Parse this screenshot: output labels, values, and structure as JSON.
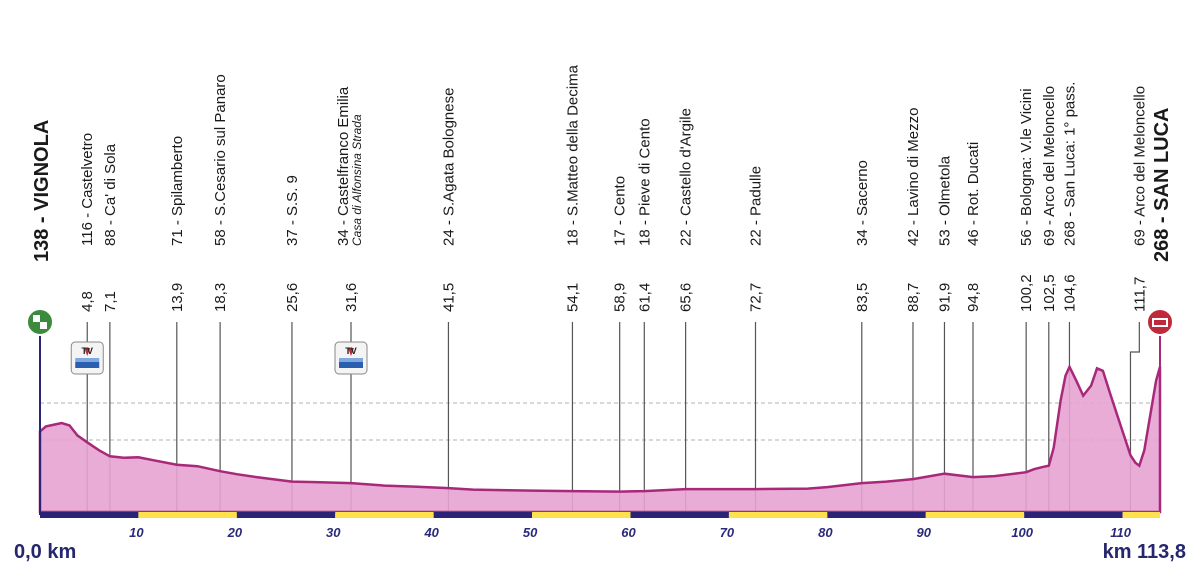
{
  "start": {
    "altitude": "138",
    "name": "VIGNOLA",
    "km_label": "0,0 km"
  },
  "finish": {
    "altitude": "268",
    "name": "SAN LUCA",
    "km_label": "km 113,8"
  },
  "colors": {
    "fill": "#e6a3d2",
    "line": "#a8287a",
    "navy": "#2a2376",
    "yellow": "#ffe04d",
    "pole": "#555555"
  },
  "chart_data": {
    "type": "area",
    "x_unit": "km",
    "xlim": [
      0,
      113.8
    ],
    "x_ticks": [
      10,
      20,
      30,
      40,
      50,
      60,
      70,
      80,
      90,
      100,
      110
    ],
    "profile": {
      "x": [
        0,
        0.6,
        1.5,
        2.2,
        3.0,
        3.8,
        4.8,
        6.0,
        7.1,
        8.5,
        10.0,
        11.5,
        13.9,
        16.0,
        18.3,
        20.0,
        22.0,
        25.6,
        28.0,
        31.6,
        35.0,
        38.0,
        41.5,
        44.0,
        50.0,
        54.1,
        58.9,
        61.4,
        65.6,
        72.7,
        78.0,
        80.0,
        83.5,
        86.0,
        88.7,
        91.9,
        94.8,
        97.0,
        100.2,
        101.0,
        101.8,
        102.5,
        103.0,
        103.7,
        104.2,
        104.6,
        105.3,
        106.0,
        106.8,
        107.4,
        108.0,
        108.8,
        109.8,
        110.8,
        111.3,
        111.7,
        112.2,
        112.8,
        113.4,
        113.8
      ],
      "y": [
        138,
        148,
        152,
        155,
        150,
        130,
        116,
        100,
        88,
        85,
        86,
        80,
        71,
        68,
        58,
        52,
        46,
        37,
        36,
        34,
        29,
        27,
        24,
        21,
        19,
        18,
        17,
        18,
        22,
        22,
        23,
        26,
        34,
        37,
        42,
        53,
        46,
        48,
        56,
        62,
        66,
        69,
        105,
        200,
        250,
        268,
        240,
        210,
        230,
        265,
        260,
        210,
        150,
        90,
        75,
        69,
        100,
        170,
        240,
        268
      ]
    },
    "waypoints": [
      {
        "km": "4,8",
        "x": 4.8,
        "label": "116 - Castelvetro"
      },
      {
        "km": "7,1",
        "x": 7.1,
        "label": "88 - Ca' di Sola"
      },
      {
        "km": "13,9",
        "x": 13.9,
        "label": "71 - Spilamberto"
      },
      {
        "km": "18,3",
        "x": 18.3,
        "label": "58 - S.Cesario sul Panaro"
      },
      {
        "km": "25,6",
        "x": 25.6,
        "label": "37 - S.S. 9"
      },
      {
        "km": "31,6",
        "x": 31.6,
        "label": "34 - Castelfranco Emilia",
        "sub": "Casa di Alfonsina Strada"
      },
      {
        "km": "41,5",
        "x": 41.5,
        "label": "24 - S.Agata Bolognese"
      },
      {
        "km": "54,1",
        "x": 54.1,
        "label": "18 - S.Matteo della Decima"
      },
      {
        "km": "58,9",
        "x": 58.9,
        "label": "17 - Cento"
      },
      {
        "km": "61,4",
        "x": 61.4,
        "label": "18 - Pieve di Cento"
      },
      {
        "km": "65,6",
        "x": 65.6,
        "label": "22 - Castello d'Argile"
      },
      {
        "km": "72,7",
        "x": 72.7,
        "label": "22 - Padulle"
      },
      {
        "km": "83,5",
        "x": 83.5,
        "label": "34 - Sacerno"
      },
      {
        "km": "88,7",
        "x": 88.7,
        "label": "42 - Lavino di Mezzo"
      },
      {
        "km": "91,9",
        "x": 91.9,
        "label": "53 - Olmetola"
      },
      {
        "km": "94,8",
        "x": 94.8,
        "label": "46 - Rot. Ducati"
      },
      {
        "km": "100,2",
        "x": 100.2,
        "label": "56 - Bologna: V.le Vicini"
      },
      {
        "km": "102,5",
        "x": 102.5,
        "label": "69 - Arco del Meloncello"
      },
      {
        "km": "104,6",
        "x": 104.6,
        "label": "268 - San Luca: 1° pass."
      },
      {
        "km": "111,7",
        "x": 111.7,
        "label": "69 - Arco del Meloncello",
        "pole_x": 110.8
      }
    ],
    "sprints": [
      4.8,
      31.6
    ],
    "sprint_icon_text": "TV"
  }
}
